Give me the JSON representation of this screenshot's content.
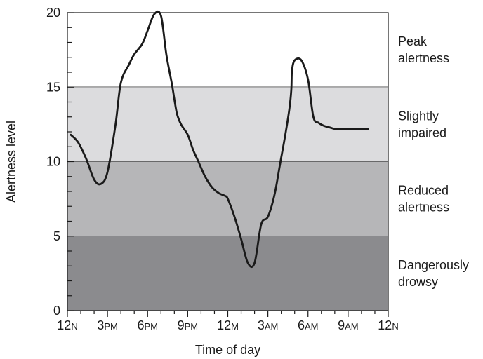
{
  "chart_data": {
    "type": "line",
    "title": "",
    "xlabel": "Time of day",
    "ylabel": "Alertness level",
    "ylim": [
      0,
      20
    ],
    "xlim": [
      0,
      24
    ],
    "y_ticks": [
      "0",
      "5",
      "10",
      "15",
      "20"
    ],
    "x_ticks": [
      {
        "main": "12",
        "suffix": "N"
      },
      {
        "main": "3",
        "suffix": "PM"
      },
      {
        "main": "6",
        "suffix": "PM"
      },
      {
        "main": "9",
        "suffix": "PM"
      },
      {
        "main": "12",
        "suffix": "M"
      },
      {
        "main": "3",
        "suffix": "AM"
      },
      {
        "main": "6",
        "suffix": "AM"
      },
      {
        "main": "9",
        "suffix": "AM"
      },
      {
        "main": "12",
        "suffix": "N"
      }
    ],
    "zones": [
      {
        "label_lines": [
          "Peak",
          "alertness"
        ],
        "range": [
          15,
          20
        ],
        "color": "#ffffff"
      },
      {
        "label_lines": [
          "Slightly",
          "impaired"
        ],
        "range": [
          10,
          15
        ],
        "color": "#dcdcde"
      },
      {
        "label_lines": [
          "Reduced",
          "alertness"
        ],
        "range": [
          5,
          10
        ],
        "color": "#b6b6b8"
      },
      {
        "label_lines": [
          "Dangerously",
          "drowsy"
        ],
        "range": [
          0,
          5
        ],
        "color": "#8b8b8e"
      }
    ],
    "series": [
      {
        "x": [
          0.25,
          0.8,
          1.4,
          2.0,
          2.5,
          3.0,
          3.6,
          4.0,
          4.6,
          5.0,
          5.6,
          6.0,
          6.5,
          7.0,
          7.4,
          7.8,
          8.0,
          8.2,
          8.5,
          9.0,
          9.4,
          9.8,
          10.3,
          10.8,
          11.3,
          11.8,
          12.0,
          12.5,
          13.0,
          13.5,
          14.0,
          14.5,
          15.0,
          15.5,
          15.9,
          16.3,
          16.6,
          16.75,
          16.8,
          17.0,
          17.5,
          18.0,
          18.4,
          18.8,
          19.2,
          19.6,
          20.0,
          20.3,
          20.6,
          21.0,
          21.5,
          22.0,
          22.5
        ],
        "y": [
          11.8,
          11.3,
          10.2,
          8.8,
          8.5,
          9.3,
          12.5,
          15.3,
          16.5,
          17.2,
          17.9,
          18.8,
          19.9,
          19.8,
          17.2,
          15.3,
          14.2,
          13.2,
          12.5,
          11.8,
          10.8,
          10.0,
          9.0,
          8.3,
          7.9,
          7.7,
          7.5,
          6.3,
          4.8,
          3.2,
          3.2,
          5.8,
          6.3,
          7.8,
          9.8,
          11.8,
          13.5,
          14.8,
          16.1,
          16.8,
          16.8,
          15.5,
          13.0,
          12.6,
          12.4,
          12.3,
          12.2,
          12.2,
          12.2,
          12.2,
          12.2,
          12.2,
          12.2
        ],
        "color": "#1a1a1a"
      }
    ],
    "grid": false,
    "legend": "none"
  }
}
